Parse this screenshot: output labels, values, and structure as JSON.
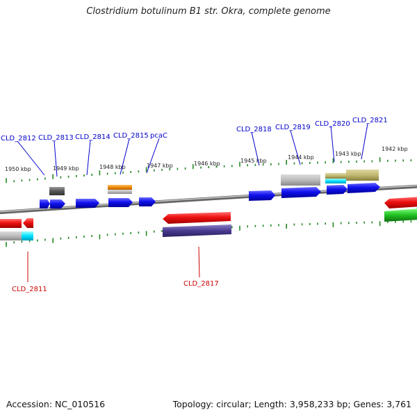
{
  "title": "Clostridium botulinum B1 str. Okra, complete genome",
  "footer": {
    "accession": "Accession: NC_010516",
    "summary": "Topology: circular; Length: 3,958,233 bp; Genes: 3,761"
  },
  "scale_labels": [
    "1950 kbp",
    "1949 kbp",
    "1948 kbp",
    "1947 kbp",
    "1946 kbp",
    "1945 kbp",
    "1944 kbp",
    "1943 kbp",
    "1942 kbp"
  ],
  "top_labels": [
    "CLD_2812",
    "CLD_2813",
    "CLD_2814",
    "CLD_2815",
    "pcaC",
    "CLD_2818",
    "CLD_2819",
    "CLD_2820",
    "CLD_2821"
  ],
  "bottom_labels": [
    "CLD_2811",
    "CLD_2817"
  ],
  "colors": {
    "forward_gene": "#0a0aee",
    "reverse_gene": "#ee0a0a",
    "backbone": "#888888",
    "tick": "#228822",
    "label_blue": "#0000cc",
    "label_red": "#cc0000"
  }
}
